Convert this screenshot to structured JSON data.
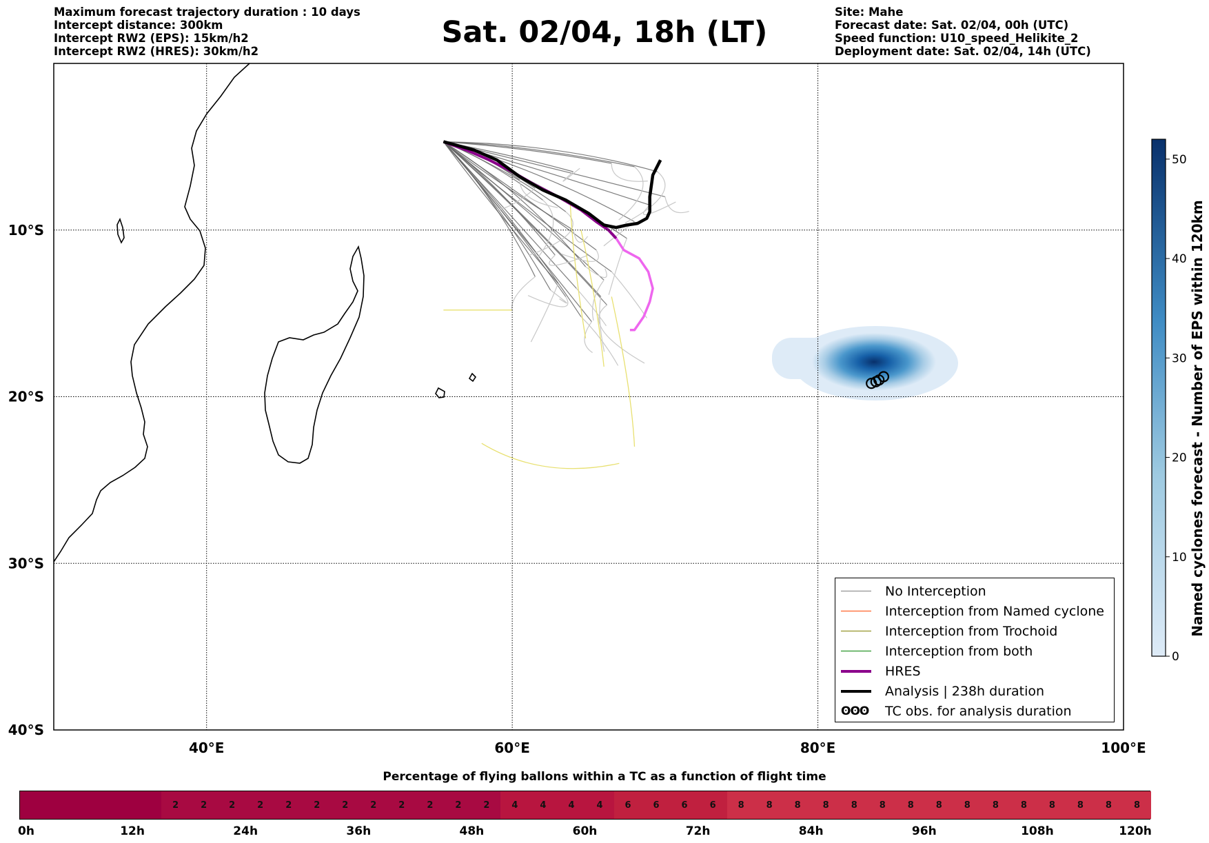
{
  "header_left": [
    "Maximum forecast trajectory duration : 10 days",
    "Intercept distance: 300km",
    "Intercept RW2 (EPS):  15km/h2",
    "Intercept RW2 (HRES): 30km/h2"
  ],
  "header_right": [
    "Site: Mahe",
    "Forecast date: Sat. 02/04, 00h (UTC)",
    "Speed function: U10_speed_Helikite_2",
    "Deployment date: Sat. 02/04, 14h (UTC)"
  ],
  "title": "Sat. 02/04, 18h (LT)",
  "chart_data": {
    "type": "map",
    "projection": "equirectangular",
    "lon_range": [
      30,
      100
    ],
    "lat_range": [
      -40,
      0
    ],
    "lon_ticks": [
      {
        "value": 40,
        "label": "40°E"
      },
      {
        "value": 60,
        "label": "60°E"
      },
      {
        "value": 80,
        "label": "80°E"
      },
      {
        "value": 100,
        "label": "100°E"
      }
    ],
    "lat_ticks": [
      {
        "value": -10,
        "label": "10°S"
      },
      {
        "value": -20,
        "label": "20°S"
      },
      {
        "value": -30,
        "label": "30°S"
      },
      {
        "value": -40,
        "label": "40°S"
      }
    ],
    "grid": true,
    "colors": {
      "no_interception": "#666666",
      "named_cyclone": "#ff5500",
      "trochoid": "#808000",
      "both": "#228b22",
      "hres": "#8b008b",
      "analysis": "#000000",
      "late_ensemble": "#c8c8c8",
      "late_trochoid": "#e8e070",
      "late_hres": "#ee66ee"
    },
    "analysis": {
      "lon": [
        55.5,
        57.5,
        59.0,
        60.5,
        62.0,
        63.5,
        65.0,
        66.0,
        66.8,
        67.5,
        68.2,
        68.8,
        69.0,
        69.0,
        69.2,
        69.7
      ],
      "lat": [
        -4.7,
        -5.2,
        -5.8,
        -6.8,
        -7.6,
        -8.2,
        -9.0,
        -9.7,
        -9.85,
        -9.7,
        -9.6,
        -9.3,
        -8.9,
        -8.0,
        -6.7,
        -5.8
      ]
    },
    "hres": {
      "lon": [
        55.5,
        57.0,
        58.5,
        60.0,
        61.5,
        63.0,
        64.5,
        65.5,
        66.3,
        66.8
      ],
      "lat": [
        -4.7,
        -5.2,
        -5.8,
        -6.5,
        -7.3,
        -8.0,
        -8.8,
        -9.5,
        -10.0,
        -10.5
      ]
    },
    "hres_late": {
      "lon": [
        66.8,
        67.3,
        68.3,
        68.9,
        69.2,
        69.0,
        68.6,
        68.0,
        67.7
      ],
      "lat": [
        -10.5,
        -11.2,
        -11.7,
        -12.5,
        -13.5,
        -14.3,
        -15.2,
        -16.0,
        -16.0
      ]
    },
    "ensemble_endpoints": [
      {
        "lon": 60.5,
        "lat": -7.0
      },
      {
        "lon": 62.0,
        "lat": -8.2
      },
      {
        "lon": 63.5,
        "lat": -8.9
      },
      {
        "lon": 64.0,
        "lat": -10.0
      },
      {
        "lon": 62.8,
        "lat": -11.5
      },
      {
        "lon": 61.5,
        "lat": -12.8
      },
      {
        "lon": 63.0,
        "lat": -13.2
      },
      {
        "lon": 64.2,
        "lat": -13.5
      },
      {
        "lon": 64.8,
        "lat": -12.2
      },
      {
        "lon": 65.5,
        "lat": -11.2
      },
      {
        "lon": 66.0,
        "lat": -13.0
      },
      {
        "lon": 66.2,
        "lat": -14.5
      },
      {
        "lon": 65.2,
        "lat": -15.5
      },
      {
        "lon": 63.5,
        "lat": -14.0
      },
      {
        "lon": 62.5,
        "lat": -13.6
      },
      {
        "lon": 66.5,
        "lat": -12.5
      },
      {
        "lon": 67.5,
        "lat": -10.5
      },
      {
        "lon": 68.0,
        "lat": -9.5
      },
      {
        "lon": 69.0,
        "lat": -8.5
      },
      {
        "lon": 70.0,
        "lat": -8.0
      },
      {
        "lon": 69.5,
        "lat": -6.5
      },
      {
        "lon": 68.0,
        "lat": -6.2
      },
      {
        "lon": 66.5,
        "lat": -6.0
      },
      {
        "lon": 64.0,
        "lat": -6.5
      },
      {
        "lon": 61.5,
        "lat": -7.5
      },
      {
        "lon": 65.8,
        "lat": -14.0
      },
      {
        "lon": 64.5,
        "lat": -15.2
      }
    ],
    "cyclone_obs": [
      {
        "lon": 83.5,
        "lat": -19.2
      },
      {
        "lon": 83.8,
        "lat": -19.1
      },
      {
        "lon": 84.0,
        "lat": -19.0
      },
      {
        "lon": 84.3,
        "lat": -18.8
      }
    ],
    "cyclone_density": {
      "center_lon": 83.8,
      "center_lat": -19.3,
      "max_count": 52
    },
    "colorbar": {
      "label": "Named cyclones forecast - Number of EPS within 120km",
      "range": [
        0,
        52
      ],
      "ticks": [
        0,
        10,
        20,
        30,
        40,
        50
      ],
      "color_low": "#deebf7",
      "color_high": "#08306b"
    }
  },
  "legend": [
    {
      "label": "No Interception",
      "color": "#7f7f7f",
      "width": 1.5,
      "type": "line"
    },
    {
      "label": "Interception from Named cyclone",
      "color": "#ff4500",
      "width": 1.5,
      "type": "line"
    },
    {
      "label": "Interception from Trochoid",
      "color": "#808000",
      "width": 1.5,
      "type": "line"
    },
    {
      "label": "Interception from both",
      "color": "#008000",
      "width": 1.5,
      "type": "line"
    },
    {
      "label": "HRES",
      "color": "#8b008b",
      "width": 4,
      "type": "line"
    },
    {
      "label": "Analysis | 238h duration",
      "color": "#000000",
      "width": 4,
      "type": "line"
    },
    {
      "label": "TC obs. for analysis duration",
      "symbol": "ʘʘʘ",
      "type": "symbol"
    }
  ],
  "percentage_bar": {
    "title": "Percentage of flying ballons within a TC as a function of flight time",
    "tick_labels": [
      "0h",
      "12h",
      "24h",
      "36h",
      "48h",
      "60h",
      "72h",
      "84h",
      "96h",
      "108h",
      "120h"
    ],
    "segments": [
      {
        "from_h": 0,
        "to_h": 15,
        "value": "",
        "cells": 0,
        "color": "#9e0040"
      },
      {
        "from_h": 15,
        "to_h": 51,
        "value": "2",
        "cells": 12,
        "color": "#a80a42"
      },
      {
        "from_h": 51,
        "to_h": 63,
        "value": "4",
        "cells": 4,
        "color": "#b8153f"
      },
      {
        "from_h": 63,
        "to_h": 75,
        "value": "6",
        "cells": 4,
        "color": "#c0203f"
      },
      {
        "from_h": 75,
        "to_h": 120,
        "value": "8",
        "cells": 15,
        "color": "#cc2f48"
      }
    ]
  }
}
